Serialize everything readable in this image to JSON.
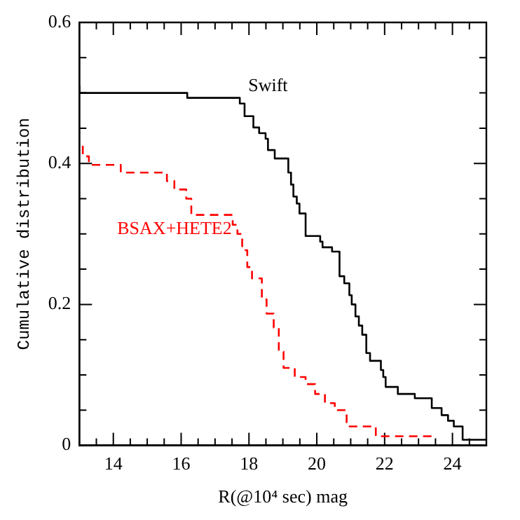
{
  "chart_data": {
    "type": "step",
    "xlabel": "R(@10⁴ sec) mag",
    "ylabel": "Cumulative distribution",
    "xlim": [
      13,
      25
    ],
    "ylim": [
      0,
      0.6
    ],
    "xticks": [
      {
        "value": 13.5,
        "label": null
      },
      14,
      {
        "value": 14.5,
        "label": null
      },
      {
        "value": 15,
        "label": null
      },
      {
        "value": 15.5,
        "label": null
      },
      16,
      {
        "value": 16.5,
        "label": null
      },
      {
        "value": 17,
        "label": null
      },
      {
        "value": 17.5,
        "label": null
      },
      18,
      {
        "value": 18.5,
        "label": null
      },
      {
        "value": 19,
        "label": null
      },
      {
        "value": 19.5,
        "label": null
      },
      20,
      {
        "value": 20.5,
        "label": null
      },
      {
        "value": 21,
        "label": null
      },
      {
        "value": 21.5,
        "label": null
      },
      22,
      {
        "value": 22.5,
        "label": null
      },
      {
        "value": 23,
        "label": null
      },
      {
        "value": 23.5,
        "label": null
      },
      24,
      {
        "value": 24.5,
        "label": null
      }
    ],
    "yticks": [
      0,
      {
        "value": 0.05,
        "label": null
      },
      {
        "value": 0.1,
        "label": null
      },
      {
        "value": 0.15,
        "label": null
      },
      0.2,
      {
        "value": 0.25,
        "label": null
      },
      {
        "value": 0.3,
        "label": null
      },
      {
        "value": 0.35,
        "label": null
      },
      0.4,
      {
        "value": 0.45,
        "label": null
      },
      {
        "value": 0.5,
        "label": null
      },
      {
        "value": 0.55,
        "label": null
      },
      0.6
    ],
    "grid": false,
    "legend": false,
    "marker": "none",
    "series": [
      {
        "name": "Swift",
        "color": "#000000",
        "line_style": "solid",
        "x": [
          13,
          16.18,
          17.73,
          17.87,
          18.13,
          18.3,
          18.49,
          18.56,
          18.76,
          19.16,
          19.24,
          19.31,
          19.41,
          19.49,
          19.67,
          20.1,
          20.17,
          20.45,
          20.67,
          20.81,
          20.96,
          21.03,
          21.14,
          21.24,
          21.34,
          21.46,
          21.57,
          21.89,
          21.96,
          22.03,
          22.39,
          22.89,
          23.39,
          23.68,
          23.87,
          24.04,
          24.3,
          24.54,
          25
        ],
        "values": [
          0.51,
          0.5,
          0.493,
          0.485,
          0.467,
          0.451,
          0.443,
          0.435,
          0.419,
          0.407,
          0.387,
          0.37,
          0.353,
          0.343,
          0.329,
          0.297,
          0.289,
          0.281,
          0.275,
          0.24,
          0.23,
          0.213,
          0.2,
          0.183,
          0.17,
          0.157,
          0.131,
          0.12,
          0.107,
          0.097,
          0.083,
          0.073,
          0.067,
          0.053,
          0.043,
          0.035,
          0.027,
          0.008,
          0.008
        ]
      },
      {
        "name": "BSAX+HETE2",
        "color": "#ff0000",
        "line_style": "dashed",
        "x": [
          13.1,
          13.28,
          14.22,
          15.58,
          15.8,
          16.15,
          16.3,
          17.52,
          17.66,
          17.8,
          17.95,
          18.09,
          18.38,
          18.52,
          18.73,
          18.88,
          19.02,
          19.35,
          19.67,
          19.95,
          20.24,
          20.53,
          20.88,
          21.74,
          22.1,
          23.47
        ],
        "values": [
          0.425,
          0.41,
          0.398,
          0.387,
          0.375,
          0.363,
          0.35,
          0.327,
          0.313,
          0.3,
          0.277,
          0.253,
          0.237,
          0.207,
          0.187,
          0.167,
          0.133,
          0.11,
          0.097,
          0.087,
          0.073,
          0.06,
          0.05,
          0.027,
          0.013,
          0.013
        ]
      }
    ]
  }
}
